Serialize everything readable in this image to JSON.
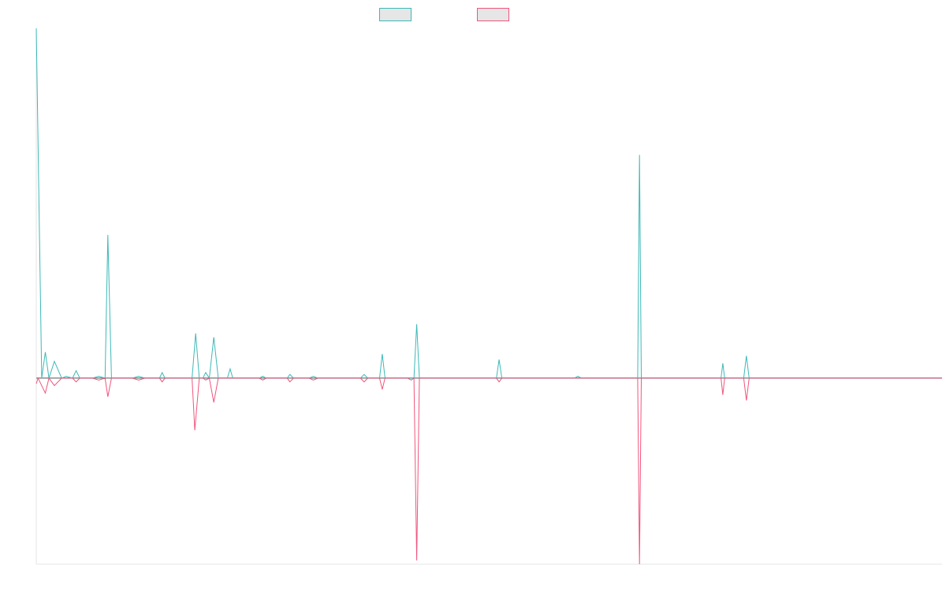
{
  "chart_data": {
    "type": "line",
    "title": "",
    "xlabel": "",
    "ylabel": "",
    "grid": false,
    "legend_position": "top-center",
    "ylim": [
      -100,
      188
    ],
    "xlim": [
      0,
      100
    ],
    "series": [
      {
        "color": "#3cb9b7",
        "points": [
          [
            0,
            188
          ],
          [
            0.6,
            0
          ],
          [
            1.0,
            14
          ],
          [
            1.4,
            0
          ],
          [
            2.0,
            9
          ],
          [
            2.8,
            0
          ],
          [
            3.3,
            1
          ],
          [
            4.0,
            0
          ],
          [
            4.4,
            4
          ],
          [
            4.8,
            0
          ],
          [
            6.2,
            0
          ],
          [
            6.9,
            1
          ],
          [
            7.6,
            0
          ],
          [
            7.9,
            77
          ],
          [
            8.3,
            0
          ],
          [
            10.6,
            0
          ],
          [
            11.3,
            1
          ],
          [
            12.0,
            0
          ],
          [
            13.6,
            0
          ],
          [
            13.9,
            3
          ],
          [
            14.2,
            0
          ],
          [
            17.2,
            0
          ],
          [
            17.6,
            24
          ],
          [
            18.0,
            0
          ],
          [
            18.4,
            0
          ],
          [
            18.7,
            3
          ],
          [
            19.1,
            0
          ],
          [
            19.6,
            22
          ],
          [
            20.1,
            0
          ],
          [
            21.1,
            0
          ],
          [
            21.4,
            5
          ],
          [
            21.7,
            0
          ],
          [
            24.6,
            0
          ],
          [
            25.0,
            1
          ],
          [
            25.4,
            0
          ],
          [
            27.7,
            0
          ],
          [
            28.0,
            2
          ],
          [
            28.4,
            0
          ],
          [
            30.1,
            0
          ],
          [
            30.6,
            1
          ],
          [
            31.1,
            0
          ],
          [
            35.8,
            0
          ],
          [
            36.2,
            2
          ],
          [
            36.6,
            0
          ],
          [
            37.9,
            0
          ],
          [
            38.2,
            13
          ],
          [
            38.5,
            0
          ],
          [
            41.0,
            0
          ],
          [
            41.7,
            0
          ],
          [
            42.0,
            29
          ],
          [
            42.3,
            0
          ],
          [
            50.8,
            0
          ],
          [
            51.1,
            10
          ],
          [
            51.4,
            0
          ],
          [
            59.4,
            0
          ],
          [
            59.8,
            1
          ],
          [
            60.2,
            0
          ],
          [
            66.4,
            0
          ],
          [
            66.6,
            120
          ],
          [
            66.8,
            0
          ],
          [
            75.6,
            0
          ],
          [
            75.8,
            8
          ],
          [
            76.0,
            0
          ],
          [
            78.1,
            0
          ],
          [
            78.4,
            12
          ],
          [
            78.7,
            0
          ],
          [
            100,
            0
          ]
        ]
      },
      {
        "color": "#f0557d",
        "points": [
          [
            0,
            -3
          ],
          [
            0.2,
            0
          ],
          [
            1.0,
            -8
          ],
          [
            1.4,
            0
          ],
          [
            2.0,
            -4
          ],
          [
            2.8,
            0
          ],
          [
            4.0,
            0
          ],
          [
            4.4,
            -2
          ],
          [
            4.8,
            0
          ],
          [
            6.2,
            0
          ],
          [
            6.9,
            -1
          ],
          [
            7.6,
            0
          ],
          [
            7.9,
            -10
          ],
          [
            8.3,
            0
          ],
          [
            10.6,
            0
          ],
          [
            11.3,
            -1
          ],
          [
            12.0,
            0
          ],
          [
            13.6,
            0
          ],
          [
            13.9,
            -2
          ],
          [
            14.2,
            0
          ],
          [
            17.2,
            0
          ],
          [
            17.5,
            -28
          ],
          [
            18.0,
            0
          ],
          [
            18.4,
            0
          ],
          [
            18.7,
            -1
          ],
          [
            19.1,
            0
          ],
          [
            19.6,
            -13
          ],
          [
            20.1,
            0
          ],
          [
            24.6,
            0
          ],
          [
            25.0,
            -1
          ],
          [
            25.4,
            0
          ],
          [
            27.7,
            0
          ],
          [
            28.0,
            -2
          ],
          [
            28.4,
            0
          ],
          [
            30.1,
            0
          ],
          [
            30.6,
            -1
          ],
          [
            31.1,
            0
          ],
          [
            35.8,
            0
          ],
          [
            36.2,
            -2
          ],
          [
            36.6,
            0
          ],
          [
            37.9,
            0
          ],
          [
            38.2,
            -6
          ],
          [
            38.5,
            0
          ],
          [
            41.0,
            0
          ],
          [
            41.4,
            -1
          ],
          [
            41.7,
            0
          ],
          [
            42.0,
            -98
          ],
          [
            42.3,
            0
          ],
          [
            50.8,
            0
          ],
          [
            51.1,
            -2
          ],
          [
            51.4,
            0
          ],
          [
            66.4,
            0
          ],
          [
            66.6,
            -100
          ],
          [
            66.8,
            0
          ],
          [
            75.6,
            0
          ],
          [
            75.8,
            -9
          ],
          [
            76.0,
            0
          ],
          [
            78.1,
            0
          ],
          [
            78.4,
            -12
          ],
          [
            78.7,
            0
          ],
          [
            100,
            0
          ]
        ]
      }
    ]
  }
}
